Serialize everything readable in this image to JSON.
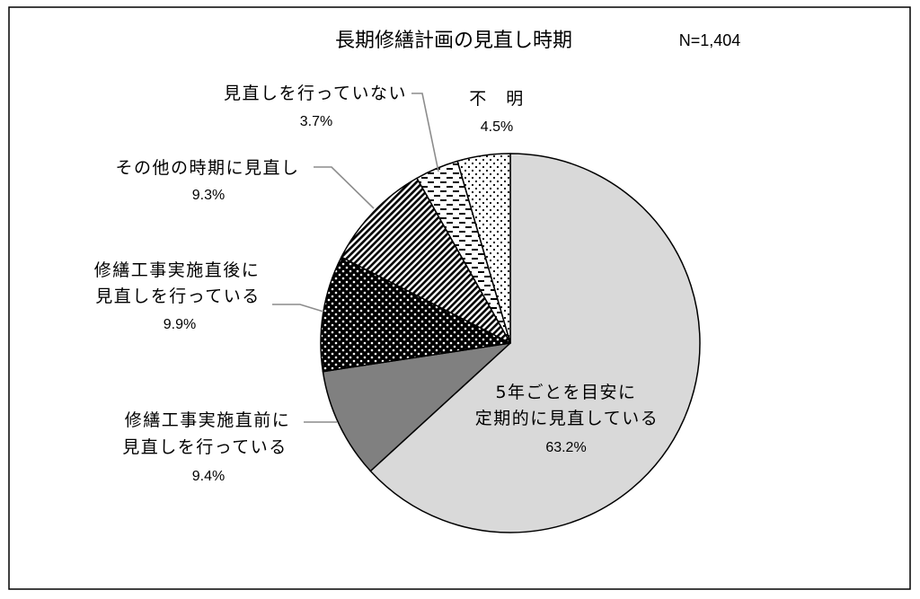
{
  "chart_data": {
    "type": "pie",
    "title": "長期修繕計画の見直し時期",
    "sample_size": "N=1,404",
    "slices": [
      {
        "label_lines": [
          "5年ごとを目安に",
          "定期的に見直している"
        ],
        "value": 63.2,
        "value_label": "63.2%",
        "fill": "#d9d9d9",
        "pattern": "solid"
      },
      {
        "label_lines": [
          "修繕工事実施直前に",
          "見直しを行っている"
        ],
        "value": 9.4,
        "value_label": "9.4%",
        "fill": "#808080",
        "pattern": "solid"
      },
      {
        "label_lines": [
          "修繕工事実施直後に",
          "見直しを行っている"
        ],
        "value": 9.9,
        "value_label": "9.9%",
        "fill": "#000000",
        "pattern": "white-dots-on-black"
      },
      {
        "label_lines": [
          "その他の時期に見直し"
        ],
        "value": 9.3,
        "value_label": "9.3%",
        "fill": "#000000",
        "pattern": "diagonal-stripes"
      },
      {
        "label_lines": [
          "見直しを行っていない"
        ],
        "value": 3.7,
        "value_label": "3.7%",
        "fill": "#000000",
        "pattern": "horizontal-dashes"
      },
      {
        "label_lines": [
          "不　明"
        ],
        "value": 4.5,
        "value_label": "4.5%",
        "fill": "#000000",
        "pattern": "black-dots-on-white"
      }
    ]
  }
}
